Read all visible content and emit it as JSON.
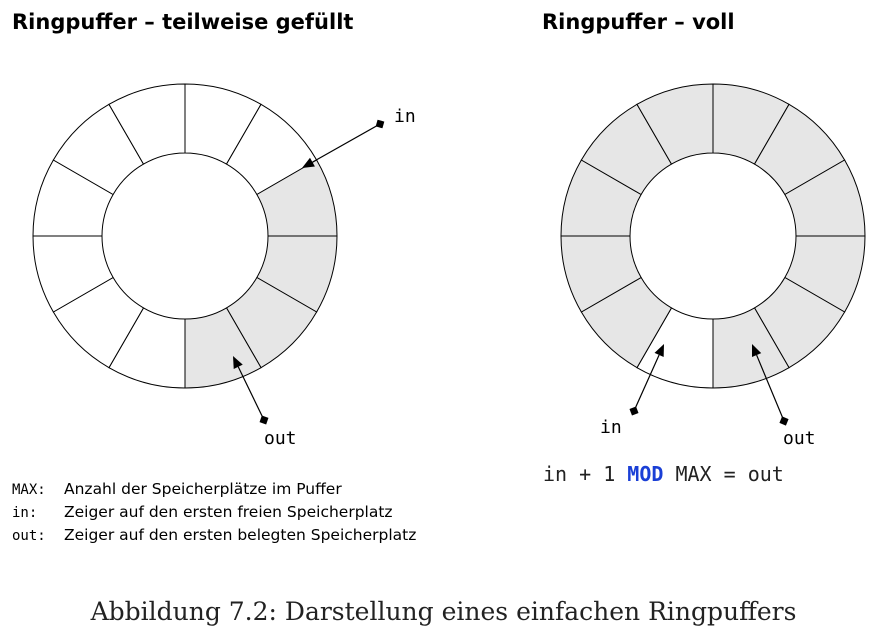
{
  "titles": {
    "left": "Ringpuffer – teilweise gefüllt",
    "right": "Ringpuffer – voll"
  },
  "colors": {
    "filled": "#e6e6e6",
    "empty": "#ffffff",
    "stroke": "#000000",
    "mod_keyword": "#1a3fd6"
  },
  "rings": [
    {
      "name": "partial",
      "slots": 12,
      "filled_slots": [
        2,
        3,
        4,
        5
      ],
      "pointers": [
        {
          "label": "in",
          "target_slot": 1
        },
        {
          "label": "out",
          "target_slot": 5
        }
      ]
    },
    {
      "name": "full",
      "slots": 12,
      "filled_slots": [
        0,
        1,
        2,
        3,
        4,
        5,
        7,
        8,
        9,
        10,
        11
      ],
      "pointers": [
        {
          "label": "in",
          "target_slot": 6
        },
        {
          "label": "out",
          "target_slot": 5
        }
      ]
    }
  ],
  "labels": {
    "left_in": "in",
    "left_out": "out",
    "right_in": "in",
    "right_out": "out"
  },
  "legend": [
    {
      "key": "MAX:",
      "desc": "Anzahl der Speicherplätze im Puffer"
    },
    {
      "key": "in:",
      "desc": "Zeiger auf den ersten freien Speicherplatz"
    },
    {
      "key": "out:",
      "desc": "Zeiger auf den ersten belegten Speicherplatz"
    }
  ],
  "formula": {
    "before": "in + 1 ",
    "keyword": "MOD",
    "after": " MAX = out"
  },
  "caption": "Abbildung 7.2: Darstellung eines einfachen Ringpuffers"
}
